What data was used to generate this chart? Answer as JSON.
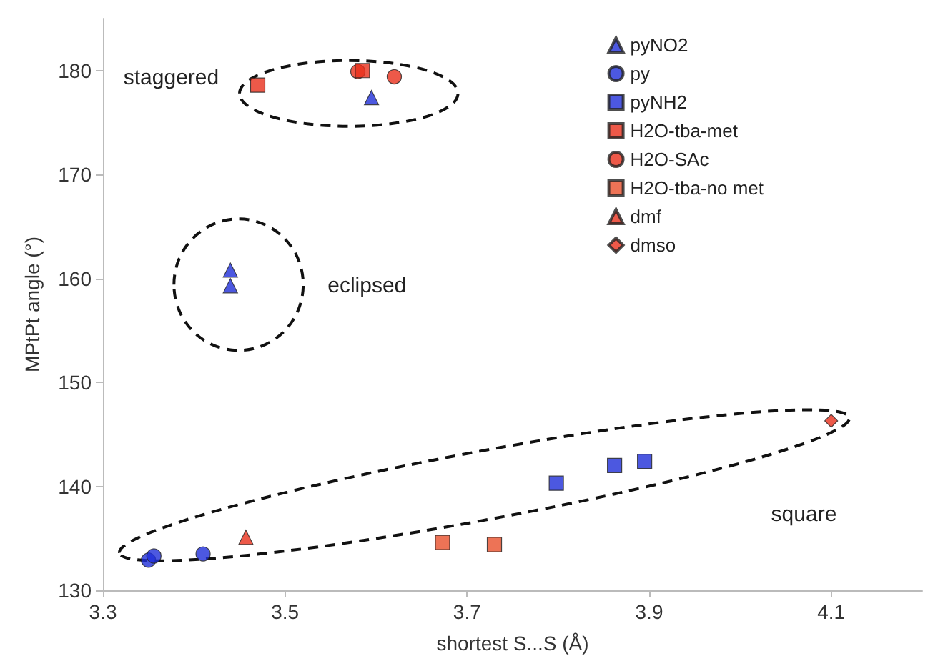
{
  "chart_data": {
    "type": "scatter",
    "xlabel": "shortest S...S (Å)",
    "ylabel": "MPtPt angle (°)",
    "xlim": [
      3.3,
      4.2
    ],
    "xticks": [
      3.3,
      3.5,
      3.7,
      3.9,
      4.1
    ],
    "ylim": [
      130,
      185
    ],
    "yticks": [
      130,
      140,
      150,
      160,
      170,
      180
    ],
    "grid": false,
    "legend": "top right",
    "annotations": [
      "staggered",
      "eclipsed",
      "square"
    ],
    "series": [
      {
        "name": "pyNO2",
        "color": "#1f2ed8",
        "marker": "triangle",
        "x": [
          3.44,
          3.44,
          3.595
        ],
        "values": [
          160.8,
          159.3,
          177.4
        ]
      },
      {
        "name": "py",
        "color": "#1f2ed8",
        "marker": "circle",
        "x": [
          3.35,
          3.356,
          3.41
        ],
        "values": [
          132.9,
          133.3,
          133.5
        ]
      },
      {
        "name": "pyNH2",
        "color": "#1f2ed8",
        "marker": "square",
        "x": [
          3.798,
          3.862,
          3.895
        ],
        "values": [
          140.3,
          142.0,
          142.4
        ]
      },
      {
        "name": "H2O-tba-met",
        "color": "#e8301c",
        "marker": "square",
        "x": [
          3.47,
          3.585
        ],
        "values": [
          178.6,
          180.0
        ]
      },
      {
        "name": "H2O-SAc",
        "color": "#e8301c",
        "marker": "circle",
        "x": [
          3.58,
          3.62
        ],
        "values": [
          179.9,
          179.4
        ]
      },
      {
        "name": "H2O-tba-no met",
        "color": "#e8502c",
        "marker": "square",
        "x": [
          3.673,
          3.73
        ],
        "values": [
          134.6,
          134.4
        ]
      },
      {
        "name": "dmf",
        "color": "#e8301c",
        "marker": "triangle",
        "x": [
          3.457
        ],
        "values": [
          135.1
        ]
      },
      {
        "name": "dmso",
        "color": "#e8301c",
        "marker": "diamond",
        "x": [
          4.1
        ],
        "values": [
          146.3
        ]
      }
    ]
  }
}
